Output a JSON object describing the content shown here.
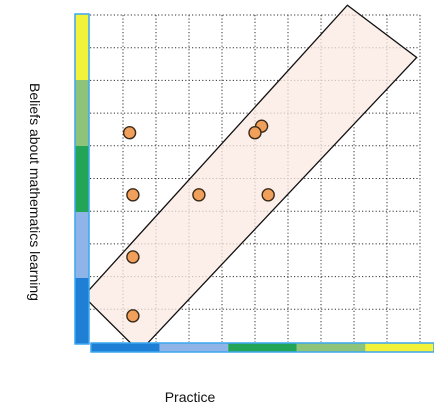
{
  "chart_data": {
    "type": "scatter",
    "title": "",
    "xlabel": "Practice",
    "ylabel": "Beliefs about mathematics learning",
    "xlim": [
      0,
      10
    ],
    "ylim": [
      0,
      10
    ],
    "grid": true,
    "grid_style": "dotted",
    "legend": "none",
    "colors": {
      "point_fill": "#f0a05a",
      "point_stroke": "#3a2a1a",
      "band_fill": "#fbeae3",
      "band_stroke": "#111111",
      "grid": "#333333"
    },
    "axis_bands": {
      "x": [
        "#1f7fd4",
        "#8fb5e8",
        "#22a556",
        "#8ec47a",
        "#f2f23a"
      ],
      "y": [
        "#1f7fd4",
        "#8fb5e8",
        "#22a556",
        "#8ec47a",
        "#f2f23a"
      ],
      "axis_line_color": "#3ca6f0"
    },
    "points": [
      {
        "x": 1.3,
        "y": 0.8
      },
      {
        "x": 1.3,
        "y": 2.6
      },
      {
        "x": 1.3,
        "y": 4.5
      },
      {
        "x": 1.2,
        "y": 6.4
      },
      {
        "x": 3.3,
        "y": 4.5
      },
      {
        "x": 5.4,
        "y": 4.5
      },
      {
        "x": 5.2,
        "y": 6.6
      },
      {
        "x": 5.0,
        "y": 6.4
      }
    ],
    "band": {
      "corners": [
        {
          "x": -0.2,
          "y": 1.4
        },
        {
          "x": 1.5,
          "y": -0.3
        },
        {
          "x": 9.9,
          "y": 8.7
        },
        {
          "x": 7.8,
          "y": 10.3
        }
      ]
    }
  }
}
